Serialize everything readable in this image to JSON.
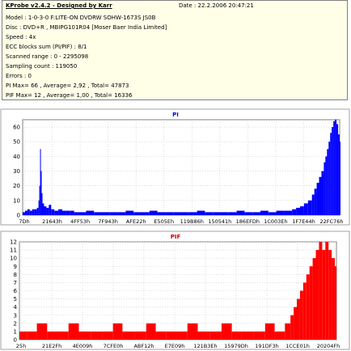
{
  "header": {
    "title": "KProbe v2.4.2 - Designed by Karr",
    "date": "Date : 22.2.2006 20:47:21"
  },
  "info_lines": [
    "Model : 1-0-3-0 F:LITE-ON DVDRW SOHW-1673S JS0B",
    "Disc : DVD+R , MBIPG101R04 [Moser Baer India Limited]",
    "Speed : 4x",
    "ECC blocks sum (PI/PIF) : 8/1",
    "Scanned range : 0 - 2295098",
    "Sampling count : 119050",
    "Errors : 0",
    "PI Max= 66 , Average= 2,92 , Total= 47873",
    "PIF Max= 12 , Average= 1,00 , Total= 16336"
  ],
  "colors": {
    "pi_series": "#0000ff",
    "pif_series": "#ff0000",
    "title_pi": "#0000cc",
    "title_pif": "#cc0000",
    "panel_bg": "#ffffe8"
  },
  "chart_data": [
    {
      "type": "bar",
      "title": "PI",
      "ylim": [
        0,
        65
      ],
      "yticks": [
        0,
        10,
        20,
        30,
        40,
        50,
        60
      ],
      "xticks": [
        "7Dh",
        "21643h",
        "4FF53h",
        "7F943h",
        "AFE22h",
        "E505Eh",
        "119B86h",
        "150541h",
        "186EFDh",
        "1C003Eh",
        "1F7E44h",
        "22FC76h"
      ],
      "grid": true,
      "series": [
        {
          "x": [
            0,
            3,
            6,
            9,
            12,
            15,
            18,
            20,
            21,
            22,
            23,
            24,
            25,
            27,
            30,
            33,
            36,
            40,
            45,
            50,
            55,
            60,
            65,
            70,
            80,
            90,
            100,
            110,
            120,
            130,
            140,
            150,
            160,
            170,
            180,
            190,
            200,
            210,
            220,
            230,
            240,
            250,
            260,
            270,
            280,
            290,
            300,
            310,
            320,
            330,
            340,
            345,
            350,
            355,
            360,
            365,
            368,
            371,
            374,
            377,
            380,
            382,
            384,
            386,
            388,
            390,
            392,
            394,
            396,
            398,
            400
          ],
          "values": [
            2,
            3,
            4,
            3,
            4,
            4,
            5,
            10,
            20,
            45,
            30,
            15,
            8,
            6,
            5,
            7,
            4,
            3,
            4,
            3,
            3,
            3,
            2,
            2,
            3,
            2,
            2,
            2,
            2,
            3,
            2,
            2,
            3,
            2,
            2,
            2,
            2,
            2,
            3,
            2,
            2,
            2,
            2,
            3,
            2,
            2,
            3,
            2,
            3,
            3,
            4,
            5,
            6,
            8,
            10,
            14,
            18,
            22,
            26,
            30,
            36,
            40,
            45,
            50,
            56,
            60,
            64,
            66,
            62,
            55,
            50
          ]
        }
      ]
    },
    {
      "type": "bar",
      "title": "PIF",
      "ylim": [
        0,
        12
      ],
      "yticks": [
        0,
        1,
        2,
        3,
        4,
        5,
        6,
        7,
        8,
        9,
        10,
        11,
        12
      ],
      "xticks": [
        "25h",
        "21E2Fh",
        "4E009h",
        "7CFE0h",
        "ABF12h",
        "E7E09h",
        "121B3Eh",
        "15979Dh",
        "191DF3h",
        "1CCE01h",
        "20204Fh"
      ],
      "grid": true,
      "series": [
        {
          "x": [
            0,
            10,
            22,
            35,
            50,
            62,
            75,
            90,
            105,
            118,
            130,
            145,
            160,
            172,
            185,
            200,
            212,
            225,
            240,
            255,
            268,
            280,
            295,
            310,
            322,
            335,
            342,
            346,
            350,
            354,
            358,
            362,
            366,
            370,
            374,
            378,
            382,
            386,
            390,
            394,
            398
          ],
          "values": [
            1,
            1,
            2,
            1,
            1,
            2,
            1,
            1,
            1,
            2,
            1,
            1,
            2,
            1,
            1,
            1,
            2,
            1,
            1,
            2,
            1,
            1,
            1,
            2,
            1,
            2,
            3,
            4,
            5,
            6,
            7,
            8,
            9,
            10,
            11,
            12,
            11,
            12,
            11,
            10,
            9
          ]
        }
      ]
    }
  ]
}
